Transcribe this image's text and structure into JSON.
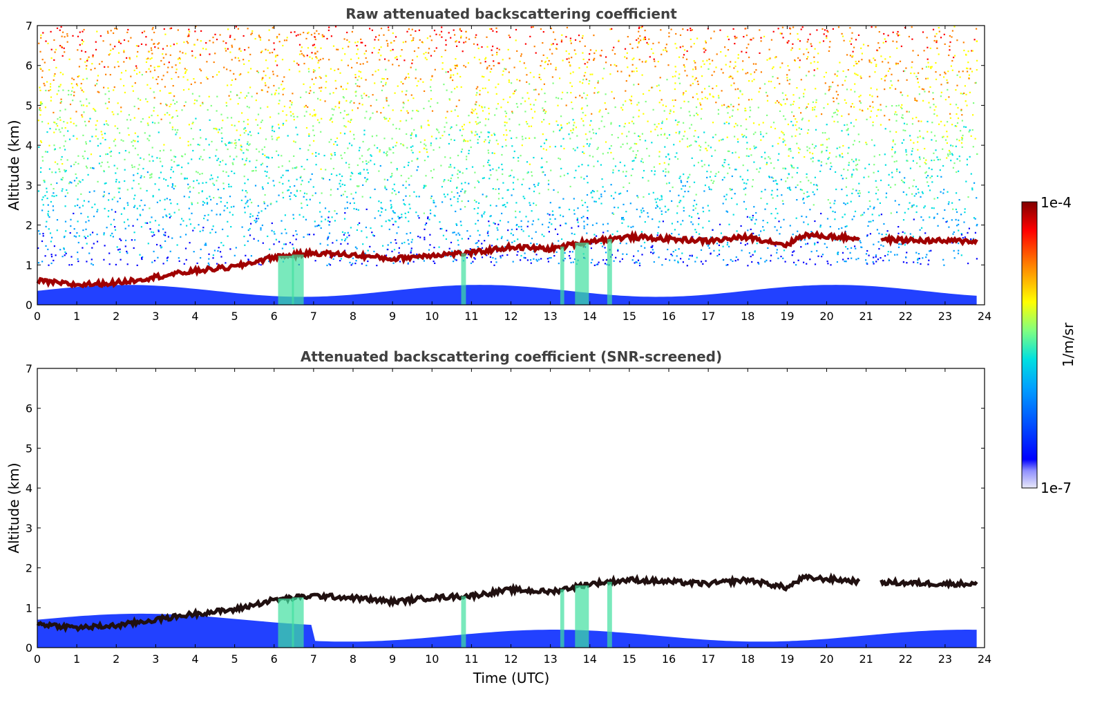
{
  "chart_data": [
    {
      "type": "heatmap",
      "title": "Raw attenuated backscattering coefficient",
      "xlabel": "",
      "ylabel": "Altitude (km)",
      "xlim": [
        0,
        24
      ],
      "ylim": [
        0,
        7
      ],
      "x_ticks": [
        "0",
        "1",
        "2",
        "3",
        "4",
        "5",
        "6",
        "7",
        "8",
        "9",
        "10",
        "11",
        "12",
        "13",
        "14",
        "15",
        "16",
        "17",
        "18",
        "19",
        "20",
        "21",
        "22",
        "23",
        "24"
      ],
      "y_ticks": [
        "0",
        "1",
        "2",
        "3",
        "4",
        "5",
        "6",
        "7"
      ],
      "data_end_time": 23.8,
      "cloud_base_layer": {
        "time_utc": [
          0,
          1,
          2,
          3,
          4,
          5,
          6,
          7,
          8,
          9,
          10,
          11,
          12,
          13,
          14,
          15,
          16,
          17,
          18,
          19,
          19.4,
          20,
          21,
          22,
          23,
          23.8
        ],
        "altitude_km": [
          0.6,
          0.5,
          0.55,
          0.7,
          0.85,
          0.95,
          1.2,
          1.3,
          1.25,
          1.15,
          1.25,
          1.3,
          1.45,
          1.4,
          1.6,
          1.7,
          1.65,
          1.6,
          1.7,
          1.5,
          1.75,
          1.72,
          1.65,
          1.62,
          1.6,
          1.6
        ]
      },
      "noise": "high noise above the cloud layer, increasing with altitude"
    },
    {
      "type": "heatmap",
      "title": "Attenuated backscattering coefficient (SNR-screened)",
      "xlabel": "Time (UTC)",
      "ylabel": "Altitude (km)",
      "xlim": [
        0,
        24
      ],
      "ylim": [
        0,
        7
      ],
      "x_ticks": [
        "0",
        "1",
        "2",
        "3",
        "4",
        "5",
        "6",
        "7",
        "8",
        "9",
        "10",
        "11",
        "12",
        "13",
        "14",
        "15",
        "16",
        "17",
        "18",
        "19",
        "20",
        "21",
        "22",
        "23",
        "24"
      ],
      "y_ticks": [
        "0",
        "1",
        "2",
        "3",
        "4",
        "5",
        "6",
        "7"
      ],
      "data_end_time": 23.8,
      "cloud_base_layer": {
        "time_utc": [
          0,
          1,
          2,
          3,
          4,
          5,
          6,
          7,
          8,
          9,
          10,
          11,
          12,
          13,
          14,
          15,
          16,
          17,
          18,
          19,
          19.4,
          20,
          21,
          22,
          23,
          23.8
        ],
        "altitude_km": [
          0.6,
          0.5,
          0.55,
          0.7,
          0.85,
          0.95,
          1.2,
          1.3,
          1.25,
          1.15,
          1.25,
          1.3,
          1.45,
          1.4,
          1.6,
          1.7,
          1.65,
          1.6,
          1.7,
          1.5,
          1.75,
          1.72,
          1.65,
          1.62,
          1.6,
          1.6
        ]
      },
      "noise": "screened out (white)"
    }
  ],
  "colorbar": {
    "label": "1/m/sr",
    "max_label": "1e-4",
    "min_label": "1e-7",
    "scale": "log",
    "colors": [
      "#e8e8f8",
      "#0000ff",
      "#00a0ff",
      "#00e0e0",
      "#80ff80",
      "#ffff00",
      "#ff8000",
      "#ff0000",
      "#800000"
    ]
  }
}
